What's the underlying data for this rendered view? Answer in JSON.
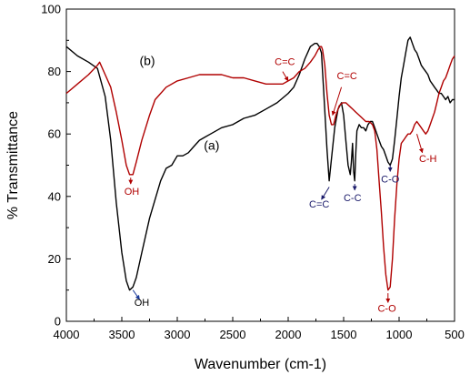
{
  "chart_data": {
    "type": "line",
    "xlabel": "Wavenumber (cm-1)",
    "ylabel": "% Transmittance",
    "xlim": [
      4000,
      500
    ],
    "ylim": [
      0,
      100
    ],
    "x_ticks": [
      4000,
      3500,
      3000,
      2500,
      2000,
      1500,
      1000,
      500
    ],
    "y_ticks": [
      0,
      20,
      40,
      60,
      80,
      100
    ],
    "x_reversed": true,
    "grid": false,
    "legend": "none",
    "series": [
      {
        "name": "(a)",
        "color": "#000000",
        "points": [
          [
            4000,
            88
          ],
          [
            3900,
            85
          ],
          [
            3800,
            83
          ],
          [
            3720,
            81
          ],
          [
            3650,
            72
          ],
          [
            3600,
            58
          ],
          [
            3550,
            38
          ],
          [
            3500,
            22
          ],
          [
            3460,
            13
          ],
          [
            3430,
            10
          ],
          [
            3400,
            11
          ],
          [
            3370,
            14
          ],
          [
            3320,
            22
          ],
          [
            3250,
            33
          ],
          [
            3200,
            39
          ],
          [
            3150,
            45
          ],
          [
            3100,
            49
          ],
          [
            3050,
            50
          ],
          [
            3000,
            53
          ],
          [
            2950,
            53
          ],
          [
            2900,
            54
          ],
          [
            2850,
            56
          ],
          [
            2800,
            58
          ],
          [
            2750,
            59
          ],
          [
            2700,
            60
          ],
          [
            2600,
            62
          ],
          [
            2500,
            63
          ],
          [
            2400,
            65
          ],
          [
            2300,
            66
          ],
          [
            2200,
            68
          ],
          [
            2100,
            70
          ],
          [
            2000,
            73
          ],
          [
            1950,
            75
          ],
          [
            1900,
            79
          ],
          [
            1850,
            84
          ],
          [
            1800,
            88
          ],
          [
            1760,
            89
          ],
          [
            1740,
            89
          ],
          [
            1720,
            88
          ],
          [
            1700,
            86
          ],
          [
            1680,
            74
          ],
          [
            1650,
            55
          ],
          [
            1630,
            45
          ],
          [
            1610,
            52
          ],
          [
            1580,
            62
          ],
          [
            1550,
            68
          ],
          [
            1520,
            70
          ],
          [
            1500,
            66
          ],
          [
            1480,
            58
          ],
          [
            1460,
            50
          ],
          [
            1440,
            47
          ],
          [
            1430,
            51
          ],
          [
            1420,
            57
          ],
          [
            1410,
            48
          ],
          [
            1400,
            45
          ],
          [
            1390,
            54
          ],
          [
            1380,
            61
          ],
          [
            1360,
            63
          ],
          [
            1340,
            62
          ],
          [
            1320,
            62
          ],
          [
            1300,
            61
          ],
          [
            1280,
            63
          ],
          [
            1260,
            64
          ],
          [
            1240,
            64
          ],
          [
            1220,
            62
          ],
          [
            1200,
            60
          ],
          [
            1180,
            58
          ],
          [
            1160,
            56
          ],
          [
            1140,
            55
          ],
          [
            1120,
            53
          ],
          [
            1100,
            51
          ],
          [
            1080,
            50
          ],
          [
            1060,
            52
          ],
          [
            1040,
            58
          ],
          [
            1020,
            65
          ],
          [
            1000,
            72
          ],
          [
            980,
            78
          ],
          [
            960,
            82
          ],
          [
            940,
            86
          ],
          [
            920,
            90
          ],
          [
            900,
            91
          ],
          [
            880,
            89
          ],
          [
            860,
            87
          ],
          [
            840,
            86
          ],
          [
            820,
            84
          ],
          [
            800,
            82
          ],
          [
            780,
            81
          ],
          [
            760,
            80
          ],
          [
            740,
            79
          ],
          [
            720,
            77
          ],
          [
            700,
            76
          ],
          [
            680,
            75
          ],
          [
            660,
            74
          ],
          [
            640,
            73
          ],
          [
            620,
            73
          ],
          [
            600,
            72
          ],
          [
            580,
            71
          ],
          [
            560,
            72
          ],
          [
            540,
            70
          ],
          [
            520,
            71
          ],
          [
            500,
            71
          ]
        ]
      },
      {
        "name": "(b)",
        "color": "#b00000",
        "points": [
          [
            4000,
            73
          ],
          [
            3900,
            76
          ],
          [
            3800,
            79
          ],
          [
            3720,
            82
          ],
          [
            3700,
            83
          ],
          [
            3650,
            79
          ],
          [
            3600,
            75
          ],
          [
            3550,
            67
          ],
          [
            3500,
            58
          ],
          [
            3460,
            50
          ],
          [
            3430,
            47
          ],
          [
            3400,
            47
          ],
          [
            3370,
            51
          ],
          [
            3320,
            58
          ],
          [
            3250,
            66
          ],
          [
            3200,
            71
          ],
          [
            3100,
            75
          ],
          [
            3000,
            77
          ],
          [
            2900,
            78
          ],
          [
            2800,
            79
          ],
          [
            2700,
            79
          ],
          [
            2600,
            79
          ],
          [
            2500,
            78
          ],
          [
            2400,
            78
          ],
          [
            2300,
            77
          ],
          [
            2200,
            76
          ],
          [
            2100,
            76
          ],
          [
            2050,
            76
          ],
          [
            2000,
            77
          ],
          [
            1950,
            78
          ],
          [
            1900,
            80
          ],
          [
            1850,
            81
          ],
          [
            1800,
            83
          ],
          [
            1760,
            85
          ],
          [
            1730,
            87
          ],
          [
            1710,
            88
          ],
          [
            1700,
            88
          ],
          [
            1690,
            87
          ],
          [
            1670,
            82
          ],
          [
            1650,
            73
          ],
          [
            1630,
            66
          ],
          [
            1610,
            63
          ],
          [
            1590,
            63
          ],
          [
            1570,
            66
          ],
          [
            1540,
            69
          ],
          [
            1510,
            70
          ],
          [
            1480,
            70
          ],
          [
            1450,
            69
          ],
          [
            1420,
            68
          ],
          [
            1390,
            67
          ],
          [
            1360,
            66
          ],
          [
            1330,
            65
          ],
          [
            1300,
            64
          ],
          [
            1270,
            64
          ],
          [
            1240,
            63
          ],
          [
            1220,
            61
          ],
          [
            1200,
            55
          ],
          [
            1180,
            45
          ],
          [
            1160,
            35
          ],
          [
            1140,
            24
          ],
          [
            1120,
            15
          ],
          [
            1100,
            10
          ],
          [
            1080,
            11
          ],
          [
            1060,
            20
          ],
          [
            1040,
            33
          ],
          [
            1020,
            44
          ],
          [
            1000,
            52
          ],
          [
            980,
            57
          ],
          [
            960,
            58
          ],
          [
            940,
            59
          ],
          [
            920,
            60
          ],
          [
            900,
            60
          ],
          [
            880,
            61
          ],
          [
            860,
            63
          ],
          [
            840,
            64
          ],
          [
            820,
            63
          ],
          [
            800,
            62
          ],
          [
            780,
            61
          ],
          [
            760,
            60
          ],
          [
            740,
            61
          ],
          [
            720,
            63
          ],
          [
            700,
            65
          ],
          [
            680,
            67
          ],
          [
            660,
            70
          ],
          [
            640,
            73
          ],
          [
            620,
            75
          ],
          [
            600,
            77
          ],
          [
            580,
            78
          ],
          [
            560,
            80
          ],
          [
            540,
            82
          ],
          [
            520,
            84
          ],
          [
            500,
            85
          ]
        ]
      }
    ],
    "annotations": [
      {
        "text": "(b)",
        "color": "#000000",
        "kind": "series-label",
        "x": 3270,
        "y": 82,
        "size": 14
      },
      {
        "text": "(a)",
        "color": "#000000",
        "kind": "series-label",
        "x": 2690,
        "y": 55,
        "size": 14
      },
      {
        "text": "C=C",
        "color": "#b00000",
        "kind": "label",
        "x": 2030,
        "y": 82,
        "ax": 2050,
        "ay": 80,
        "bx": 2000,
        "by": 77
      },
      {
        "text": "C=C",
        "color": "#b00000",
        "kind": "label",
        "x": 1470,
        "y": 77.5,
        "ax": 1520,
        "ay": 75,
        "bx": 1600,
        "by": 66
      },
      {
        "text": "OH",
        "color": "#b00000",
        "kind": "label",
        "x": 3410,
        "y": 40.5,
        "ax": 3420,
        "ay": 46,
        "bx": 3420,
        "by": 44
      },
      {
        "text": "C=C",
        "color": "#1a1a6a",
        "kind": "label",
        "x": 1720,
        "y": 36.5,
        "ax": 1630,
        "ay": 43,
        "bx": 1700,
        "by": 39
      },
      {
        "text": "C-C",
        "color": "#1a1a6a",
        "kind": "label",
        "x": 1420,
        "y": 38.5,
        "ax": 1400,
        "ay": 44,
        "bx": 1400,
        "by": 42
      },
      {
        "text": "C-O",
        "color": "#1a1a6a",
        "kind": "label",
        "x": 1080,
        "y": 44.5,
        "ax": 1080,
        "ay": 50,
        "bx": 1080,
        "by": 48
      },
      {
        "text": "C-H",
        "color": "#b00000",
        "kind": "label",
        "x": 740,
        "y": 51,
        "ax": 840,
        "ay": 60,
        "bx": 790,
        "by": 54
      },
      {
        "text": "OH",
        "color": "#000000",
        "kind": "label",
        "x": 3320,
        "y": 5,
        "ax": 3400,
        "ay": 10,
        "bx": 3340,
        "by": 7
      },
      {
        "text": "C-O",
        "color": "#b00000",
        "kind": "label",
        "x": 1110,
        "y": 3,
        "ax": 1100,
        "ay": 9,
        "bx": 1100,
        "by": 6
      }
    ]
  }
}
